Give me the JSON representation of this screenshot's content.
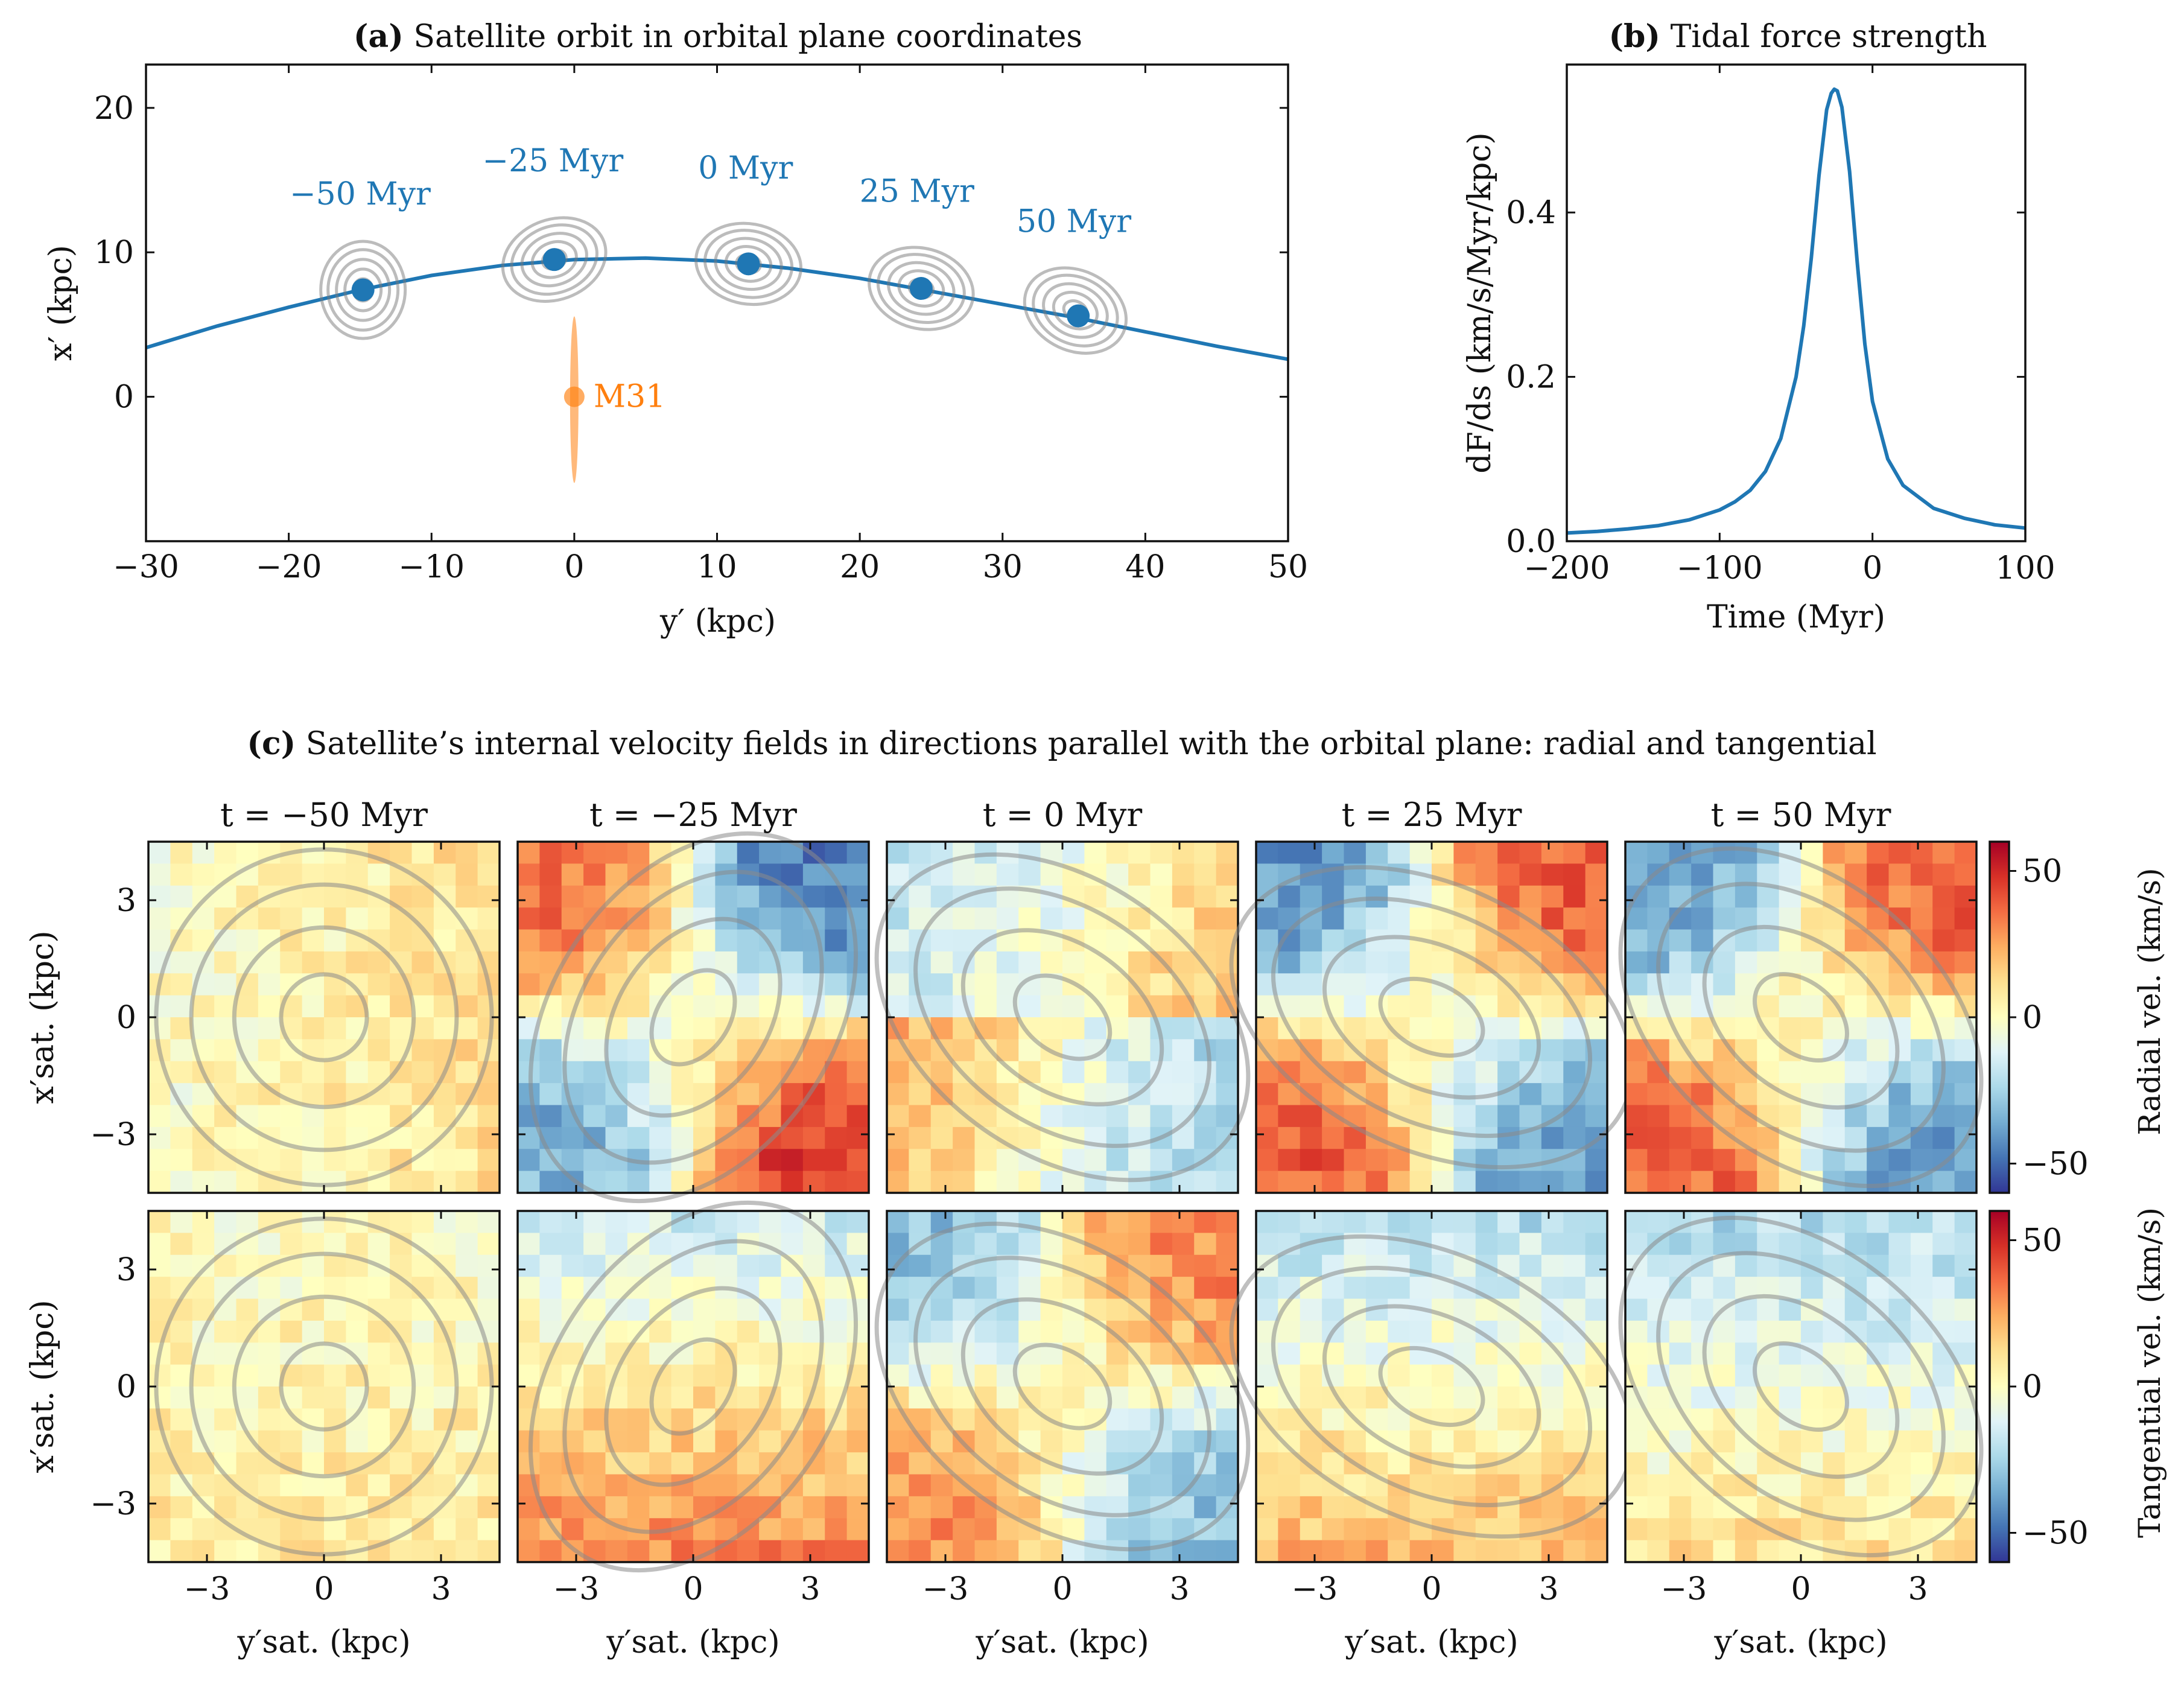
{
  "colors": {
    "orbit": "#1f77b4",
    "m31": "#ff7f0e",
    "contour": "#8a8a8a",
    "cmap": [
      "#313695",
      "#4575b4",
      "#74add1",
      "#abd9e9",
      "#e0f3f8",
      "#ffffbf",
      "#fee090",
      "#fdae61",
      "#f46d43",
      "#d73027",
      "#a50026"
    ]
  },
  "chart_data": [
    {
      "id": "a",
      "type": "line",
      "title_bold": "(a)",
      "title": "Satellite orbit in orbital plane coordinates",
      "xlabel": "y′ (kpc)",
      "ylabel": "x′ (kpc)",
      "xlim": [
        -30,
        50
      ],
      "ylim": [
        -10,
        23
      ],
      "xticks": [
        -30,
        -20,
        -10,
        0,
        10,
        20,
        30,
        40,
        50
      ],
      "xtick_labels": [
        "−30",
        "−20",
        "−10",
        "0",
        "10",
        "20",
        "30",
        "40",
        "50"
      ],
      "yticks": [
        0,
        10,
        20
      ],
      "ytick_labels": [
        "0",
        "10",
        "20"
      ],
      "orbit": {
        "x": [
          -30,
          -25,
          -20,
          -15,
          -10,
          -5,
          0,
          5,
          10,
          15,
          20,
          25,
          30,
          35,
          40,
          45,
          50
        ],
        "y": [
          3.4,
          4.9,
          6.2,
          7.4,
          8.4,
          9.1,
          9.5,
          9.6,
          9.4,
          8.9,
          8.2,
          7.3,
          6.4,
          5.5,
          4.5,
          3.5,
          2.6
        ]
      },
      "snapshots": [
        {
          "label": "−50 Myr",
          "x": -14.8,
          "y": 7.4,
          "label_x": -15,
          "label_y": 13.3
        },
        {
          "label": "−25 Myr",
          "x": -1.4,
          "y": 9.5,
          "label_x": -1.5,
          "label_y": 15.6
        },
        {
          "label": "0 Myr",
          "x": 12.2,
          "y": 9.2,
          "label_x": 12,
          "label_y": 15.1
        },
        {
          "label": "25 Myr",
          "x": 24.3,
          "y": 7.5,
          "label_x": 24,
          "label_y": 13.5
        },
        {
          "label": "50 Myr",
          "x": 35.3,
          "y": 5.6,
          "label_x": 35,
          "label_y": 11.4
        }
      ],
      "m31": {
        "label": "M31",
        "x": 0,
        "y": 0
      }
    },
    {
      "id": "b",
      "type": "line",
      "title_bold": "(b)",
      "title": "Tidal force strength",
      "xlabel": "Time (Myr)",
      "ylabel": "dF/ds (km/s/Myr/kpc)",
      "xlim": [
        -200,
        100
      ],
      "ylim": [
        0,
        0.58
      ],
      "xticks": [
        -200,
        -100,
        0,
        100
      ],
      "xtick_labels": [
        "−200",
        "−100",
        "0",
        "100"
      ],
      "yticks": [
        0,
        0.2,
        0.4
      ],
      "ytick_labels": [
        "0.0",
        "0.2",
        "0.4"
      ],
      "x": [
        -200,
        -180,
        -160,
        -140,
        -120,
        -100,
        -90,
        -80,
        -70,
        -60,
        -50,
        -45,
        -40,
        -35,
        -30,
        -27,
        -25,
        -23,
        -20,
        -15,
        -10,
        -5,
        0,
        10,
        20,
        40,
        60,
        80,
        100
      ],
      "values": [
        0.01,
        0.012,
        0.015,
        0.019,
        0.026,
        0.038,
        0.048,
        0.062,
        0.085,
        0.125,
        0.2,
        0.262,
        0.345,
        0.445,
        0.525,
        0.545,
        0.55,
        0.548,
        0.528,
        0.45,
        0.34,
        0.24,
        0.17,
        0.1,
        0.068,
        0.04,
        0.028,
        0.02,
        0.016
      ]
    },
    {
      "id": "c",
      "type": "heatmap",
      "title_bold": "(c)",
      "title": "Satellite’s internal velocity fields in directions parallel with the orbital plane: radial and tangential",
      "panel_titles": [
        "t = −50 Myr",
        "t = −25 Myr",
        "t = 0 Myr",
        "t = 25 Myr",
        "t = 50 Myr"
      ],
      "xlabel": "y′sat. (kpc)",
      "ylabel": "x′sat. (kpc)",
      "xlim": [
        -4.5,
        4.5
      ],
      "ylim": [
        -4.5,
        4.5
      ],
      "ticks": [
        -3,
        0,
        3
      ],
      "tick_labels": [
        "−3",
        "0",
        "3"
      ],
      "rows": [
        "Radial vel. (km/s)",
        "Tangential vel. (km/s)"
      ],
      "color_range": [
        -60,
        60
      ],
      "colorbar_ticks": [
        50,
        0,
        -50
      ],
      "colorbar_tick_labels": [
        "50",
        "0",
        "−50"
      ],
      "grid_size": 16,
      "contour_levels_kpc": [
        1.1,
        2.3,
        3.4,
        4.3
      ],
      "fields": {
        "radial": [
          {
            "mode": "gradx",
            "amp": 10,
            "q": 1.0,
            "rot": 0
          },
          {
            "mode": "quad",
            "amp": 40,
            "q": 1.45,
            "rot": -55
          },
          {
            "mode": "mixed",
            "amp": 30,
            "q": 1.5,
            "rot": 35
          },
          {
            "mode": "quadr",
            "amp": 40,
            "q": 1.6,
            "rot": 25
          },
          {
            "mode": "quadr",
            "amp": 38,
            "q": 1.5,
            "rot": 40
          }
        ],
        "tangential": [
          {
            "mode": "flat",
            "amp": 8,
            "q": 1.0,
            "rot": 0
          },
          {
            "mode": "grady",
            "amp": 25,
            "q": 1.45,
            "rot": -55
          },
          {
            "mode": "quadr",
            "amp": 30,
            "q": 1.5,
            "rot": 35
          },
          {
            "mode": "grady2",
            "amp": 25,
            "q": 1.6,
            "rot": 25
          },
          {
            "mode": "grady3",
            "amp": 22,
            "q": 1.5,
            "rot": 40
          }
        ]
      }
    }
  ]
}
